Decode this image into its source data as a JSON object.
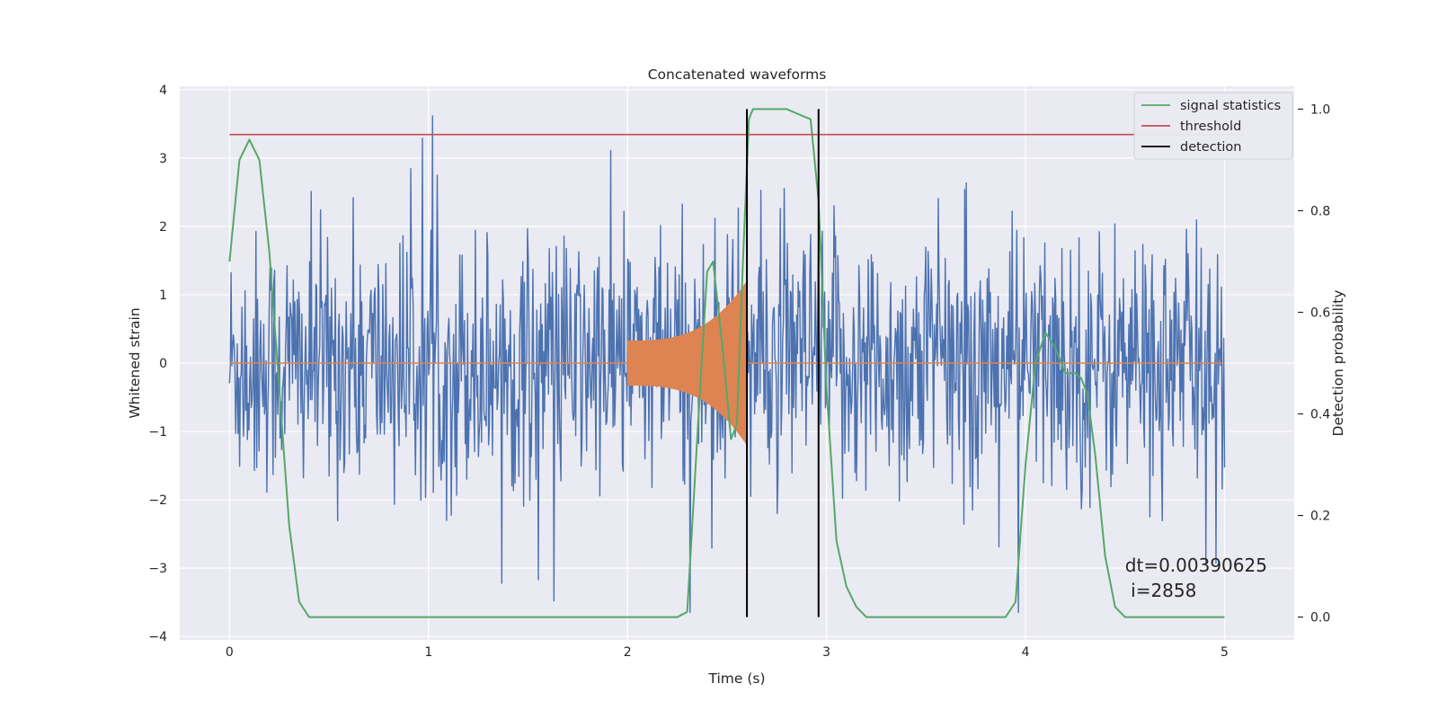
{
  "chart_data": {
    "type": "line",
    "title": "Concatenated waveforms",
    "xlabel": "Time (s)",
    "ylabel": "Whitened strain",
    "ylabel_right": "Detection probability",
    "xlim": [
      -0.25,
      5.35
    ],
    "ylim": [
      -4.05,
      4.05
    ],
    "ylim_right": [
      -0.045,
      1.045
    ],
    "xticks": [
      0,
      1,
      2,
      3,
      4,
      5
    ],
    "yticks": [
      -4,
      -3,
      -2,
      -1,
      0,
      1,
      2,
      3,
      4
    ],
    "yticks_right": [
      0.0,
      0.2,
      0.4,
      0.6,
      0.8,
      1.0
    ],
    "xtick_labels": [
      "0",
      "1",
      "2",
      "3",
      "4",
      "5"
    ],
    "ytick_labels": [
      "−4",
      "−3",
      "−2",
      "−1",
      "0",
      "1",
      "2",
      "3",
      "4"
    ],
    "ytick_right_labels": [
      "0.0",
      "0.2",
      "0.4",
      "0.6",
      "0.8",
      "1.0"
    ],
    "grid": true,
    "legend_position": "top-right",
    "legend": [
      {
        "label": "signal statistics",
        "color": "#55a868"
      },
      {
        "label": "threshold",
        "color": "#c44e52"
      },
      {
        "label": "detection",
        "color": "#000000"
      }
    ],
    "strain": {
      "color": "#4c72b0",
      "x_range": [
        0,
        5
      ],
      "samples": 1280,
      "note_visible_extent": "noise band mostly between -2.3 and 2.5, spikes up to 3.7"
    },
    "injection": {
      "color": "#dd8452",
      "x_range": [
        2.0,
        2.6
      ],
      "amplitude_start": 0.33,
      "amplitude_end": 1.2
    },
    "signal_statistics": {
      "color": "#55a868",
      "axis": "right",
      "x": [
        0.0,
        0.05,
        0.1,
        0.15,
        0.2,
        0.25,
        0.3,
        0.35,
        0.4,
        0.6,
        1.0,
        1.5,
        2.0,
        2.25,
        2.3,
        2.35,
        2.4,
        2.43,
        2.48,
        2.52,
        2.55,
        2.58,
        2.61,
        2.63,
        2.66,
        2.8,
        2.92,
        2.96,
        3.0,
        3.05,
        3.1,
        3.15,
        3.2,
        3.5,
        3.9,
        3.95,
        4.0,
        4.05,
        4.1,
        4.15,
        4.2,
        4.25,
        4.28,
        4.31,
        4.35,
        4.4,
        4.45,
        4.5,
        5.0
      ],
      "y": [
        0.7,
        0.9,
        0.94,
        0.9,
        0.72,
        0.45,
        0.18,
        0.03,
        0.0,
        0.0,
        0.0,
        0.0,
        0.0,
        0.0,
        0.01,
        0.35,
        0.68,
        0.7,
        0.52,
        0.35,
        0.38,
        0.7,
        0.98,
        1.0,
        1.0,
        1.0,
        0.98,
        0.82,
        0.45,
        0.15,
        0.06,
        0.02,
        0.0,
        0.0,
        0.0,
        0.03,
        0.3,
        0.5,
        0.56,
        0.53,
        0.48,
        0.48,
        0.47,
        0.44,
        0.32,
        0.12,
        0.02,
        0.0,
        0.0
      ]
    },
    "threshold": {
      "color": "#c44e52",
      "axis": "right",
      "value": 0.95,
      "x_range": [
        0,
        5.1
      ]
    },
    "detections": {
      "color": "#000000",
      "x": [
        2.6,
        2.96
      ]
    },
    "annotation": {
      "line1": "dt=0.00390625",
      "line2": " i=2858",
      "x": 4.5,
      "y_right": 0.1
    }
  }
}
